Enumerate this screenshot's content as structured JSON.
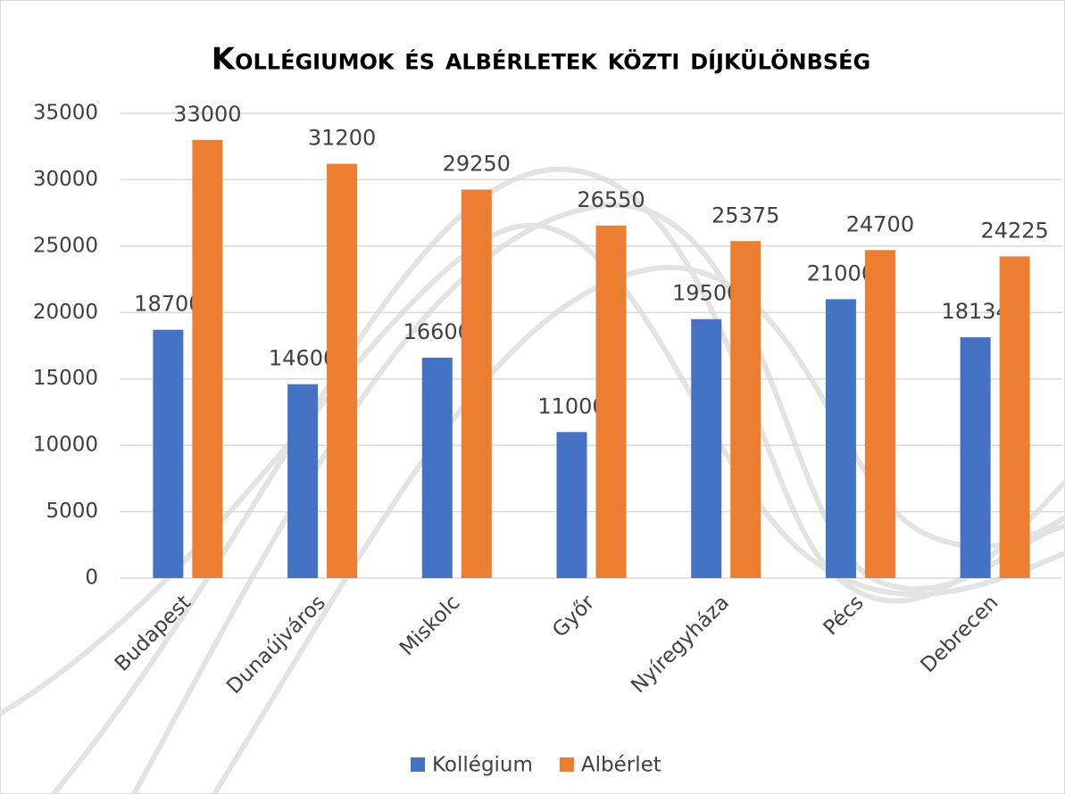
{
  "chart_data": {
    "type": "bar",
    "title": "Kollégiumok és albérletek közti díjkülönbség",
    "categories": [
      "Budapest",
      "Dunaújváros",
      "Miskolc",
      "Győr",
      "Nyíregyháza",
      "Pécs",
      "Debrecen"
    ],
    "series": [
      {
        "name": "Kollégium",
        "color": "#4472c4",
        "values": [
          18700,
          14600,
          16600,
          11000,
          19500,
          21000,
          18134
        ]
      },
      {
        "name": "Albérlet",
        "color": "#ed7d31",
        "values": [
          33000,
          31200,
          29250,
          26550,
          25375,
          24700,
          24225
        ]
      }
    ],
    "ylim": [
      0,
      35000
    ],
    "yticks": [
      0,
      5000,
      10000,
      15000,
      20000,
      25000,
      30000,
      35000
    ],
    "grid": true,
    "legend": "bottom"
  }
}
